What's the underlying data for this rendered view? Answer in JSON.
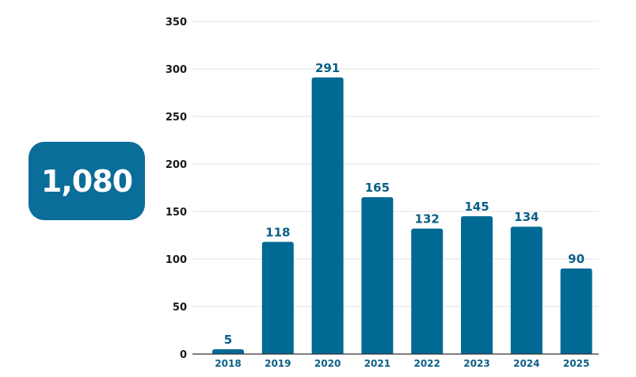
{
  "total": {
    "value": "1,080"
  },
  "colors": {
    "bar": "#006994",
    "label": "#0b5f87",
    "grid": "#e3e3e3",
    "axis": "#333333"
  },
  "chart_data": {
    "type": "bar",
    "categories": [
      "2018",
      "2019",
      "2020",
      "2021",
      "2022",
      "2023",
      "2024",
      "2025"
    ],
    "values": [
      5,
      118,
      291,
      165,
      132,
      145,
      134,
      90
    ],
    "data_labels": [
      "5",
      "118",
      "291",
      "165",
      "132",
      "145",
      "134",
      "90"
    ],
    "yticks": [
      "0",
      "50",
      "100",
      "150",
      "200",
      "250",
      "300",
      "350"
    ],
    "ylim": [
      0,
      350
    ],
    "grid": true,
    "legend": "none"
  }
}
